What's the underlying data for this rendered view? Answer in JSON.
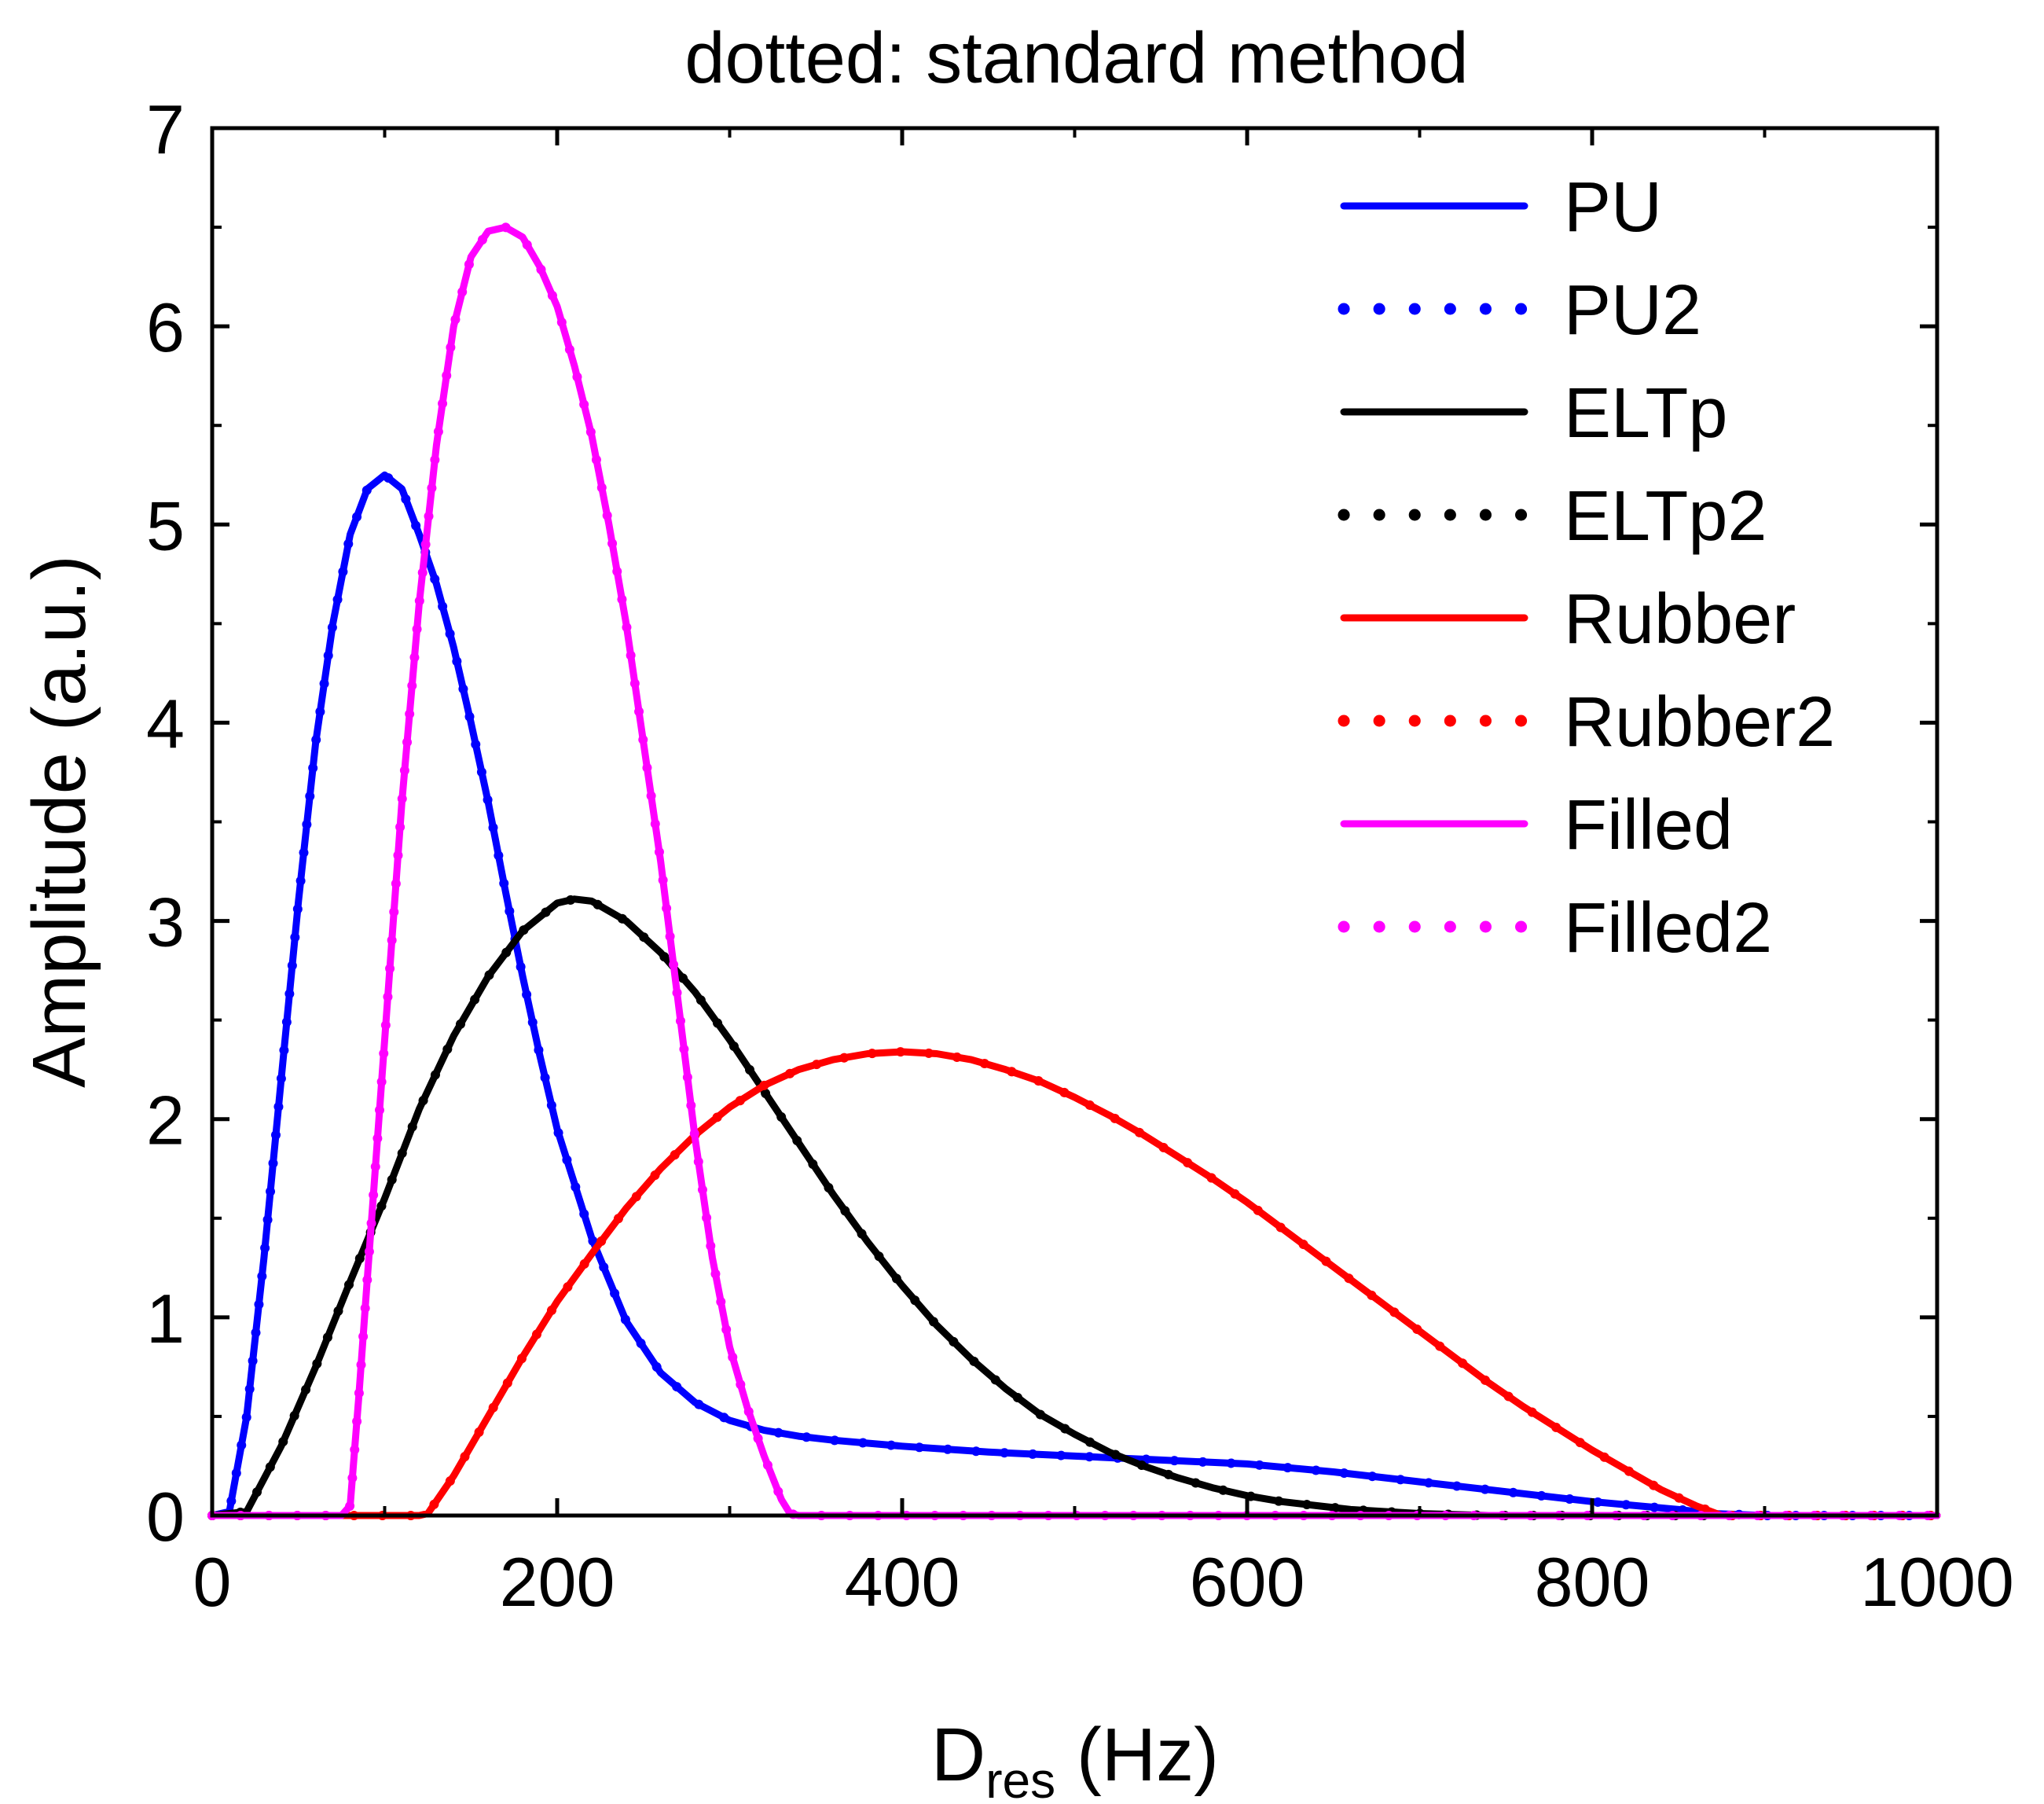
{
  "chart_data": {
    "type": "line",
    "title": "dotted: standard method",
    "xlabel": {
      "main": "D",
      "sub": "res",
      "unit": " (Hz)"
    },
    "ylabel": "Amplitude (a.u.)",
    "xlim": [
      0,
      1000
    ],
    "ylim": [
      0,
      7
    ],
    "xticks": [
      0,
      200,
      400,
      600,
      800,
      1000
    ],
    "xtick_labels": [
      "0",
      "200",
      "400",
      "600",
      "800",
      "1000"
    ],
    "yticks": [
      0,
      1,
      2,
      3,
      4,
      5,
      6,
      7
    ],
    "ytick_labels": [
      "0",
      "1",
      "2",
      "3",
      "4",
      "5",
      "6",
      "7"
    ],
    "grid": false,
    "legend_position": "top-right",
    "series": [
      {
        "name": "PU",
        "color": "#0000ff",
        "style": "solid",
        "x": [
          0,
          10,
          20,
          30,
          40,
          50,
          60,
          70,
          80,
          90,
          100,
          110,
          120,
          130,
          140,
          150,
          160,
          170,
          180,
          190,
          200,
          220,
          240,
          260,
          280,
          300,
          320,
          340,
          360,
          400,
          450,
          500,
          550,
          600,
          650,
          700,
          750,
          800,
          850,
          870,
          900,
          1000
        ],
        "y": [
          0,
          0.02,
          0.5,
          1.3,
          2.2,
          3.1,
          3.9,
          4.5,
          4.95,
          5.18,
          5.25,
          5.18,
          4.95,
          4.7,
          4.38,
          4.0,
          3.6,
          3.15,
          2.72,
          2.32,
          1.95,
          1.4,
          0.98,
          0.72,
          0.57,
          0.48,
          0.43,
          0.4,
          0.38,
          0.35,
          0.32,
          0.3,
          0.28,
          0.26,
          0.22,
          0.17,
          0.12,
          0.07,
          0.03,
          0.01,
          0,
          0
        ]
      },
      {
        "name": "PU2",
        "color": "#0000ff",
        "style": "dotted",
        "x": [
          0,
          10,
          20,
          30,
          40,
          50,
          60,
          70,
          80,
          90,
          100,
          110,
          120,
          130,
          140,
          150,
          160,
          170,
          180,
          190,
          200,
          220,
          240,
          260,
          280,
          300,
          320,
          340,
          360,
          400,
          450,
          500,
          550,
          600,
          650,
          700,
          750,
          800,
          850,
          870,
          900,
          1000
        ],
        "y": [
          0,
          0.02,
          0.5,
          1.3,
          2.2,
          3.1,
          3.9,
          4.5,
          4.95,
          5.18,
          5.25,
          5.18,
          4.95,
          4.7,
          4.38,
          4.0,
          3.6,
          3.15,
          2.72,
          2.32,
          1.95,
          1.4,
          0.98,
          0.72,
          0.57,
          0.48,
          0.43,
          0.4,
          0.38,
          0.35,
          0.32,
          0.3,
          0.28,
          0.26,
          0.22,
          0.17,
          0.12,
          0.07,
          0.03,
          0.01,
          0,
          0
        ]
      },
      {
        "name": "ELTp",
        "color": "#000000",
        "style": "solid",
        "x": [
          0,
          20,
          40,
          60,
          80,
          100,
          120,
          140,
          160,
          180,
          200,
          210,
          220,
          240,
          260,
          280,
          300,
          320,
          340,
          360,
          380,
          400,
          420,
          440,
          460,
          480,
          500,
          520,
          540,
          560,
          580,
          600,
          620,
          640,
          660,
          680,
          700,
          720,
          740,
          760,
          780,
          800,
          1000
        ],
        "y": [
          0,
          0.02,
          0.35,
          0.75,
          1.18,
          1.6,
          2.05,
          2.42,
          2.72,
          2.95,
          3.09,
          3.11,
          3.1,
          3.0,
          2.84,
          2.64,
          2.4,
          2.14,
          1.88,
          1.62,
          1.38,
          1.16,
          0.96,
          0.79,
          0.64,
          0.51,
          0.41,
          0.32,
          0.25,
          0.19,
          0.14,
          0.1,
          0.07,
          0.05,
          0.03,
          0.02,
          0.01,
          0.005,
          0,
          0,
          0,
          0,
          0
        ]
      },
      {
        "name": "ELTp2",
        "color": "#000000",
        "style": "dotted",
        "x": [
          0,
          20,
          40,
          60,
          80,
          100,
          120,
          140,
          160,
          180,
          200,
          210,
          220,
          240,
          260,
          280,
          300,
          320,
          340,
          360,
          380,
          400,
          420,
          440,
          460,
          480,
          500,
          520,
          540,
          560,
          580,
          600,
          620,
          640,
          660,
          680,
          700,
          720,
          740,
          760,
          780,
          800,
          1000
        ],
        "y": [
          0,
          0.02,
          0.35,
          0.75,
          1.18,
          1.6,
          2.05,
          2.42,
          2.72,
          2.95,
          3.09,
          3.11,
          3.1,
          3.0,
          2.84,
          2.64,
          2.4,
          2.14,
          1.88,
          1.62,
          1.38,
          1.16,
          0.96,
          0.79,
          0.64,
          0.51,
          0.41,
          0.32,
          0.25,
          0.19,
          0.14,
          0.1,
          0.07,
          0.05,
          0.03,
          0.02,
          0.01,
          0.005,
          0,
          0,
          0,
          0,
          0
        ]
      },
      {
        "name": "Rubber",
        "color": "#ff0000",
        "style": "solid",
        "x": [
          0,
          120,
          125,
          140,
          160,
          180,
          200,
          220,
          240,
          260,
          280,
          300,
          320,
          340,
          360,
          380,
          400,
          420,
          440,
          460,
          480,
          500,
          520,
          540,
          560,
          580,
          600,
          620,
          640,
          660,
          680,
          700,
          720,
          740,
          760,
          780,
          800,
          820,
          840,
          860,
          875,
          900,
          1000
        ],
        "y": [
          0,
          0,
          0.01,
          0.2,
          0.5,
          0.8,
          1.08,
          1.32,
          1.55,
          1.75,
          1.92,
          2.06,
          2.17,
          2.25,
          2.3,
          2.33,
          2.34,
          2.33,
          2.3,
          2.25,
          2.19,
          2.11,
          2.02,
          1.92,
          1.81,
          1.7,
          1.58,
          1.45,
          1.32,
          1.19,
          1.06,
          0.93,
          0.8,
          0.67,
          0.55,
          0.44,
          0.33,
          0.23,
          0.13,
          0.05,
          0,
          0,
          0
        ]
      },
      {
        "name": "Rubber2",
        "color": "#ff0000",
        "style": "dotted",
        "x": [
          0,
          120,
          125,
          140,
          160,
          180,
          200,
          220,
          240,
          260,
          280,
          300,
          320,
          340,
          360,
          380,
          400,
          420,
          440,
          460,
          480,
          500,
          520,
          540,
          560,
          580,
          600,
          620,
          640,
          660,
          680,
          700,
          720,
          740,
          760,
          780,
          800,
          820,
          840,
          860,
          875,
          900,
          1000
        ],
        "y": [
          0,
          0,
          0.01,
          0.2,
          0.5,
          0.8,
          1.08,
          1.32,
          1.55,
          1.75,
          1.92,
          2.06,
          2.17,
          2.25,
          2.3,
          2.33,
          2.34,
          2.33,
          2.3,
          2.25,
          2.19,
          2.11,
          2.02,
          1.92,
          1.81,
          1.7,
          1.58,
          1.45,
          1.32,
          1.19,
          1.06,
          0.93,
          0.8,
          0.67,
          0.55,
          0.44,
          0.33,
          0.23,
          0.13,
          0.05,
          0,
          0,
          0
        ]
      },
      {
        "name": "Filled",
        "color": "#ff00ff",
        "style": "solid",
        "x": [
          0,
          75,
          80,
          85,
          90,
          100,
          110,
          120,
          130,
          140,
          150,
          160,
          170,
          180,
          190,
          200,
          210,
          220,
          230,
          240,
          250,
          260,
          270,
          280,
          290,
          300,
          310,
          320,
          330,
          335,
          340,
          1000
        ],
        "y": [
          0,
          0,
          0.05,
          0.6,
          1.2,
          2.4,
          3.6,
          4.6,
          5.4,
          6.0,
          6.35,
          6.48,
          6.5,
          6.45,
          6.3,
          6.1,
          5.8,
          5.45,
          5.0,
          4.5,
          3.9,
          3.3,
          2.6,
          1.9,
          1.3,
          0.85,
          0.55,
          0.3,
          0.08,
          0.01,
          0,
          0
        ]
      },
      {
        "name": "Filled2",
        "color": "#ff00ff",
        "style": "dotted",
        "x": [
          0,
          75,
          80,
          85,
          90,
          100,
          110,
          120,
          130,
          140,
          150,
          160,
          170,
          180,
          190,
          200,
          210,
          220,
          230,
          240,
          250,
          260,
          270,
          280,
          290,
          300,
          310,
          320,
          330,
          335,
          340,
          1000
        ],
        "y": [
          0,
          0,
          0.05,
          0.6,
          1.2,
          2.4,
          3.6,
          4.6,
          5.4,
          6.0,
          6.35,
          6.48,
          6.5,
          6.45,
          6.3,
          6.1,
          5.8,
          5.45,
          5.0,
          4.5,
          3.9,
          3.3,
          2.6,
          1.9,
          1.3,
          0.85,
          0.55,
          0.3,
          0.08,
          0.01,
          0,
          0
        ]
      }
    ]
  }
}
